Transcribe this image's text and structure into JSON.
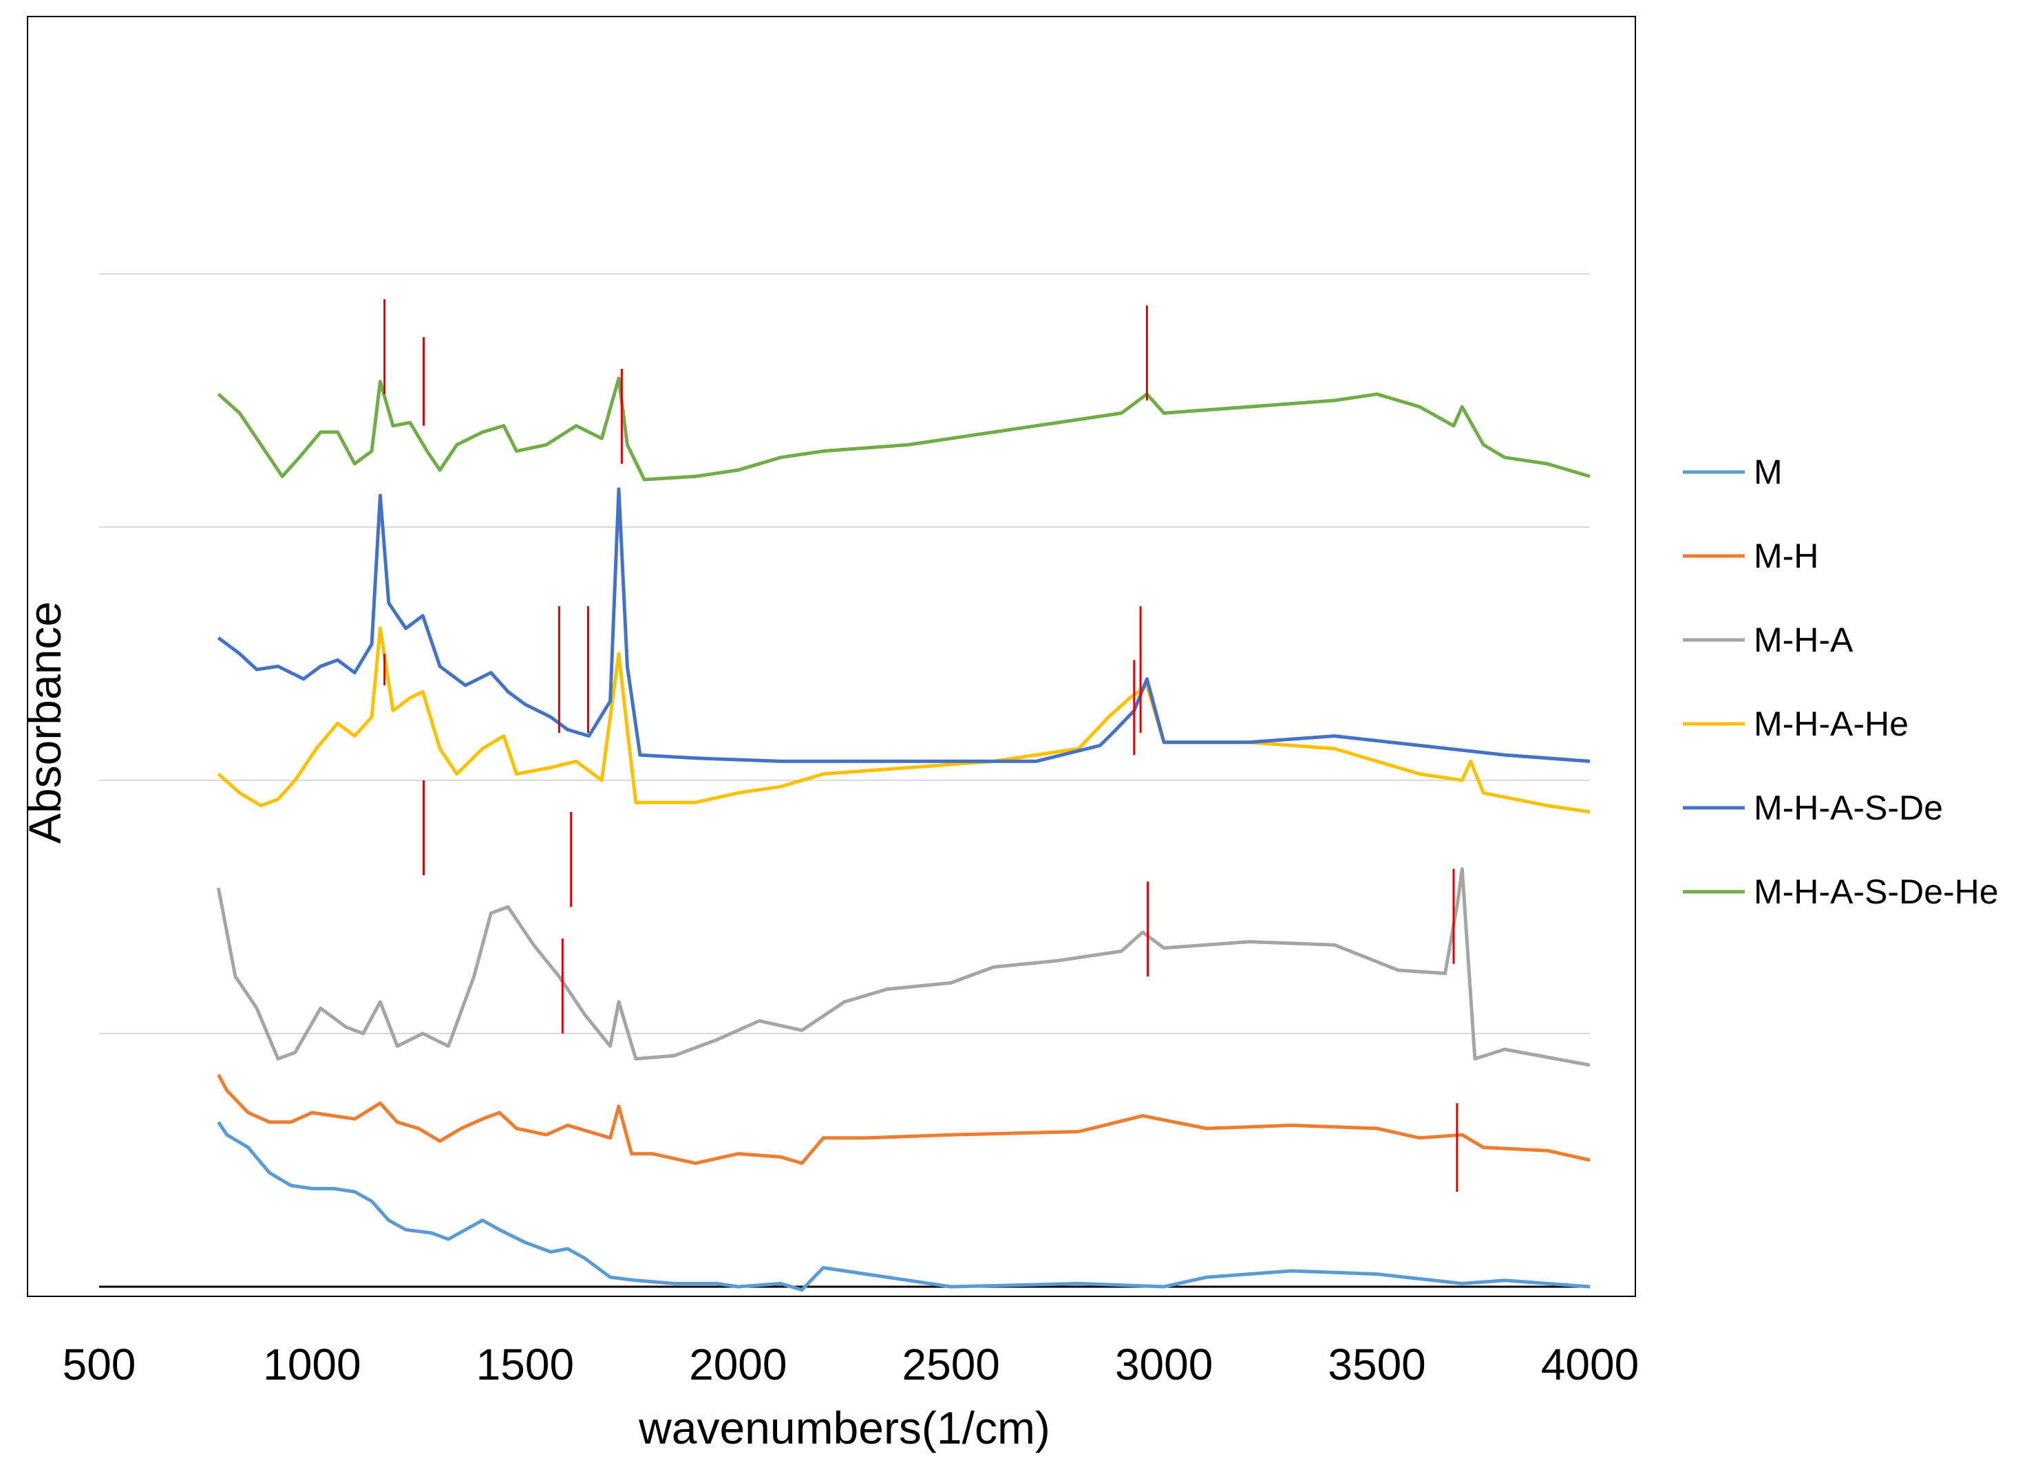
{
  "chart_data": {
    "type": "line",
    "title": "",
    "xlabel": "wavenumbers(1/cm)",
    "ylabel": "Absorbance",
    "xlim": [
      500,
      4000
    ],
    "xticks": [
      500,
      1000,
      1500,
      2000,
      2500,
      3000,
      3500,
      4000
    ],
    "y_tick_labels": "none",
    "horizontal_gridlines": true,
    "legend_position": "right",
    "series": [
      {
        "name": "M",
        "color": "#5B9BD5",
        "points": [
          [
            780,
            0.52
          ],
          [
            800,
            0.48
          ],
          [
            850,
            0.44
          ],
          [
            900,
            0.36
          ],
          [
            950,
            0.32
          ],
          [
            1000,
            0.31
          ],
          [
            1050,
            0.31
          ],
          [
            1100,
            0.3
          ],
          [
            1140,
            0.27
          ],
          [
            1180,
            0.21
          ],
          [
            1220,
            0.18
          ],
          [
            1280,
            0.17
          ],
          [
            1320,
            0.15
          ],
          [
            1360,
            0.18
          ],
          [
            1400,
            0.21
          ],
          [
            1440,
            0.18
          ],
          [
            1500,
            0.14
          ],
          [
            1560,
            0.11
          ],
          [
            1600,
            0.12
          ],
          [
            1640,
            0.09
          ],
          [
            1700,
            0.03
          ],
          [
            1760,
            0.02
          ],
          [
            1850,
            0.01
          ],
          [
            1950,
            0.01
          ],
          [
            2000,
            0.0
          ],
          [
            2100,
            0.01
          ],
          [
            2150,
            -0.01
          ],
          [
            2200,
            0.06
          ],
          [
            2500,
            0.0
          ],
          [
            2800,
            0.01
          ],
          [
            3000,
            0.0
          ],
          [
            3100,
            0.03
          ],
          [
            3300,
            0.05
          ],
          [
            3500,
            0.04
          ],
          [
            3700,
            0.01
          ],
          [
            3800,
            0.02
          ],
          [
            4000,
            0.0
          ]
        ]
      },
      {
        "name": "M-H",
        "color": "#ED7D31",
        "points": [
          [
            780,
            0.67
          ],
          [
            800,
            0.62
          ],
          [
            850,
            0.55
          ],
          [
            900,
            0.52
          ],
          [
            950,
            0.52
          ],
          [
            1000,
            0.55
          ],
          [
            1050,
            0.54
          ],
          [
            1100,
            0.53
          ],
          [
            1160,
            0.58
          ],
          [
            1200,
            0.52
          ],
          [
            1250,
            0.5
          ],
          [
            1300,
            0.46
          ],
          [
            1350,
            0.5
          ],
          [
            1400,
            0.53
          ],
          [
            1440,
            0.55
          ],
          [
            1480,
            0.5
          ],
          [
            1550,
            0.48
          ],
          [
            1600,
            0.51
          ],
          [
            1650,
            0.49
          ],
          [
            1700,
            0.47
          ],
          [
            1720,
            0.57
          ],
          [
            1750,
            0.42
          ],
          [
            1800,
            0.42
          ],
          [
            1900,
            0.39
          ],
          [
            2000,
            0.42
          ],
          [
            2100,
            0.41
          ],
          [
            2150,
            0.39
          ],
          [
            2200,
            0.47
          ],
          [
            2300,
            0.47
          ],
          [
            2500,
            0.48
          ],
          [
            2800,
            0.49
          ],
          [
            2950,
            0.54
          ],
          [
            3100,
            0.5
          ],
          [
            3300,
            0.51
          ],
          [
            3500,
            0.5
          ],
          [
            3600,
            0.47
          ],
          [
            3700,
            0.48
          ],
          [
            3750,
            0.44
          ],
          [
            3900,
            0.43
          ],
          [
            4000,
            0.4
          ]
        ]
      },
      {
        "name": "M-H-A",
        "color": "#A5A5A5",
        "points": [
          [
            780,
            1.26
          ],
          [
            820,
            0.98
          ],
          [
            870,
            0.88
          ],
          [
            920,
            0.72
          ],
          [
            960,
            0.74
          ],
          [
            1020,
            0.88
          ],
          [
            1080,
            0.82
          ],
          [
            1120,
            0.8
          ],
          [
            1160,
            0.9
          ],
          [
            1200,
            0.76
          ],
          [
            1260,
            0.8
          ],
          [
            1320,
            0.76
          ],
          [
            1380,
            0.98
          ],
          [
            1420,
            1.18
          ],
          [
            1460,
            1.2
          ],
          [
            1520,
            1.08
          ],
          [
            1580,
            0.98
          ],
          [
            1640,
            0.86
          ],
          [
            1700,
            0.76
          ],
          [
            1720,
            0.9
          ],
          [
            1760,
            0.72
          ],
          [
            1850,
            0.73
          ],
          [
            1950,
            0.78
          ],
          [
            2050,
            0.84
          ],
          [
            2150,
            0.81
          ],
          [
            2250,
            0.9
          ],
          [
            2350,
            0.94
          ],
          [
            2500,
            0.96
          ],
          [
            2600,
            1.01
          ],
          [
            2750,
            1.03
          ],
          [
            2900,
            1.06
          ],
          [
            2950,
            1.12
          ],
          [
            3000,
            1.07
          ],
          [
            3200,
            1.09
          ],
          [
            3400,
            1.08
          ],
          [
            3550,
            1.0
          ],
          [
            3660,
            0.99
          ],
          [
            3690,
            1.22
          ],
          [
            3700,
            1.32
          ],
          [
            3730,
            0.72
          ],
          [
            3800,
            0.75
          ],
          [
            4000,
            0.7
          ]
        ]
      },
      {
        "name": "M-H-A-He",
        "color": "#FFC000",
        "points": [
          [
            780,
            1.62
          ],
          [
            830,
            1.56
          ],
          [
            880,
            1.52
          ],
          [
            920,
            1.54
          ],
          [
            960,
            1.6
          ],
          [
            1010,
            1.7
          ],
          [
            1060,
            1.78
          ],
          [
            1100,
            1.74
          ],
          [
            1140,
            1.8
          ],
          [
            1160,
            2.08
          ],
          [
            1190,
            1.82
          ],
          [
            1230,
            1.86
          ],
          [
            1260,
            1.88
          ],
          [
            1300,
            1.7
          ],
          [
            1340,
            1.62
          ],
          [
            1400,
            1.7
          ],
          [
            1450,
            1.74
          ],
          [
            1480,
            1.62
          ],
          [
            1560,
            1.64
          ],
          [
            1620,
            1.66
          ],
          [
            1680,
            1.6
          ],
          [
            1720,
            2.0
          ],
          [
            1740,
            1.76
          ],
          [
            1760,
            1.53
          ],
          [
            1900,
            1.53
          ],
          [
            2000,
            1.56
          ],
          [
            2100,
            1.58
          ],
          [
            2200,
            1.62
          ],
          [
            2400,
            1.64
          ],
          [
            2600,
            1.66
          ],
          [
            2800,
            1.7
          ],
          [
            2870,
            1.8
          ],
          [
            2920,
            1.86
          ],
          [
            2960,
            1.9
          ],
          [
            3000,
            1.72
          ],
          [
            3200,
            1.72
          ],
          [
            3400,
            1.7
          ],
          [
            3600,
            1.62
          ],
          [
            3700,
            1.6
          ],
          [
            3720,
            1.66
          ],
          [
            3750,
            1.56
          ],
          [
            3900,
            1.52
          ],
          [
            4000,
            1.5
          ]
        ]
      },
      {
        "name": "M-H-A-S-De",
        "color": "#4472C4",
        "points": [
          [
            780,
            2.05
          ],
          [
            830,
            2.0
          ],
          [
            870,
            1.95
          ],
          [
            920,
            1.96
          ],
          [
            980,
            1.92
          ],
          [
            1020,
            1.96
          ],
          [
            1060,
            1.98
          ],
          [
            1100,
            1.94
          ],
          [
            1140,
            2.03
          ],
          [
            1160,
            2.5
          ],
          [
            1180,
            2.16
          ],
          [
            1220,
            2.08
          ],
          [
            1260,
            2.12
          ],
          [
            1300,
            1.96
          ],
          [
            1360,
            1.9
          ],
          [
            1420,
            1.94
          ],
          [
            1460,
            1.88
          ],
          [
            1500,
            1.84
          ],
          [
            1560,
            1.8
          ],
          [
            1600,
            1.76
          ],
          [
            1650,
            1.74
          ],
          [
            1700,
            1.85
          ],
          [
            1720,
            2.52
          ],
          [
            1740,
            1.96
          ],
          [
            1770,
            1.68
          ],
          [
            1900,
            1.67
          ],
          [
            2100,
            1.66
          ],
          [
            2400,
            1.66
          ],
          [
            2700,
            1.66
          ],
          [
            2850,
            1.71
          ],
          [
            2880,
            1.75
          ],
          [
            2930,
            1.82
          ],
          [
            2960,
            1.92
          ],
          [
            3000,
            1.72
          ],
          [
            3200,
            1.72
          ],
          [
            3400,
            1.74
          ],
          [
            3600,
            1.71
          ],
          [
            3800,
            1.68
          ],
          [
            4000,
            1.66
          ]
        ]
      },
      {
        "name": "M-H-A-S-De-He",
        "color": "#70AD47",
        "points": [
          [
            780,
            2.82
          ],
          [
            830,
            2.76
          ],
          [
            880,
            2.66
          ],
          [
            930,
            2.56
          ],
          [
            970,
            2.62
          ],
          [
            1020,
            2.7
          ],
          [
            1060,
            2.7
          ],
          [
            1100,
            2.6
          ],
          [
            1140,
            2.64
          ],
          [
            1160,
            2.86
          ],
          [
            1190,
            2.72
          ],
          [
            1230,
            2.73
          ],
          [
            1270,
            2.64
          ],
          [
            1300,
            2.58
          ],
          [
            1340,
            2.66
          ],
          [
            1400,
            2.7
          ],
          [
            1450,
            2.72
          ],
          [
            1480,
            2.64
          ],
          [
            1550,
            2.66
          ],
          [
            1620,
            2.72
          ],
          [
            1680,
            2.68
          ],
          [
            1720,
            2.87
          ],
          [
            1740,
            2.66
          ],
          [
            1780,
            2.55
          ],
          [
            1900,
            2.56
          ],
          [
            2000,
            2.58
          ],
          [
            2100,
            2.62
          ],
          [
            2200,
            2.64
          ],
          [
            2400,
            2.66
          ],
          [
            2600,
            2.7
          ],
          [
            2800,
            2.74
          ],
          [
            2900,
            2.76
          ],
          [
            2960,
            2.82
          ],
          [
            3000,
            2.76
          ],
          [
            3200,
            2.78
          ],
          [
            3400,
            2.8
          ],
          [
            3500,
            2.82
          ],
          [
            3600,
            2.78
          ],
          [
            3680,
            2.72
          ],
          [
            3700,
            2.78
          ],
          [
            3750,
            2.66
          ],
          [
            3800,
            2.62
          ],
          [
            3900,
            2.6
          ],
          [
            4000,
            2.56
          ]
        ]
      }
    ],
    "gridline_values": [
      0.8,
      1.6,
      2.4,
      3.2
    ],
    "ylim": [
      0,
      4.0
    ],
    "red_marker_lines": [
      {
        "x": 1170,
        "y1": 2.82,
        "y2": 3.12
      },
      {
        "x": 1262,
        "y1": 2.72,
        "y2": 3.0
      },
      {
        "x": 2960,
        "y1": 2.8,
        "y2": 3.1
      },
      {
        "x": 1727,
        "y1": 2.6,
        "y2": 2.9
      },
      {
        "x": 1580,
        "y1": 1.75,
        "y2": 2.15
      },
      {
        "x": 1648,
        "y1": 1.75,
        "y2": 2.15
      },
      {
        "x": 2945,
        "y1": 1.75,
        "y2": 2.15
      },
      {
        "x": 1170,
        "y1": 1.9,
        "y2": 2.0
      },
      {
        "x": 1262,
        "y1": 1.3,
        "y2": 1.6
      },
      {
        "x": 1608,
        "y1": 1.2,
        "y2": 1.5
      },
      {
        "x": 2930,
        "y1": 1.68,
        "y2": 1.98
      },
      {
        "x": 1588,
        "y1": 0.8,
        "y2": 1.1
      },
      {
        "x": 2962,
        "y1": 0.98,
        "y2": 1.28
      },
      {
        "x": 3680,
        "y1": 1.02,
        "y2": 1.32
      },
      {
        "x": 3688,
        "y1": 0.3,
        "y2": 0.58
      }
    ]
  }
}
